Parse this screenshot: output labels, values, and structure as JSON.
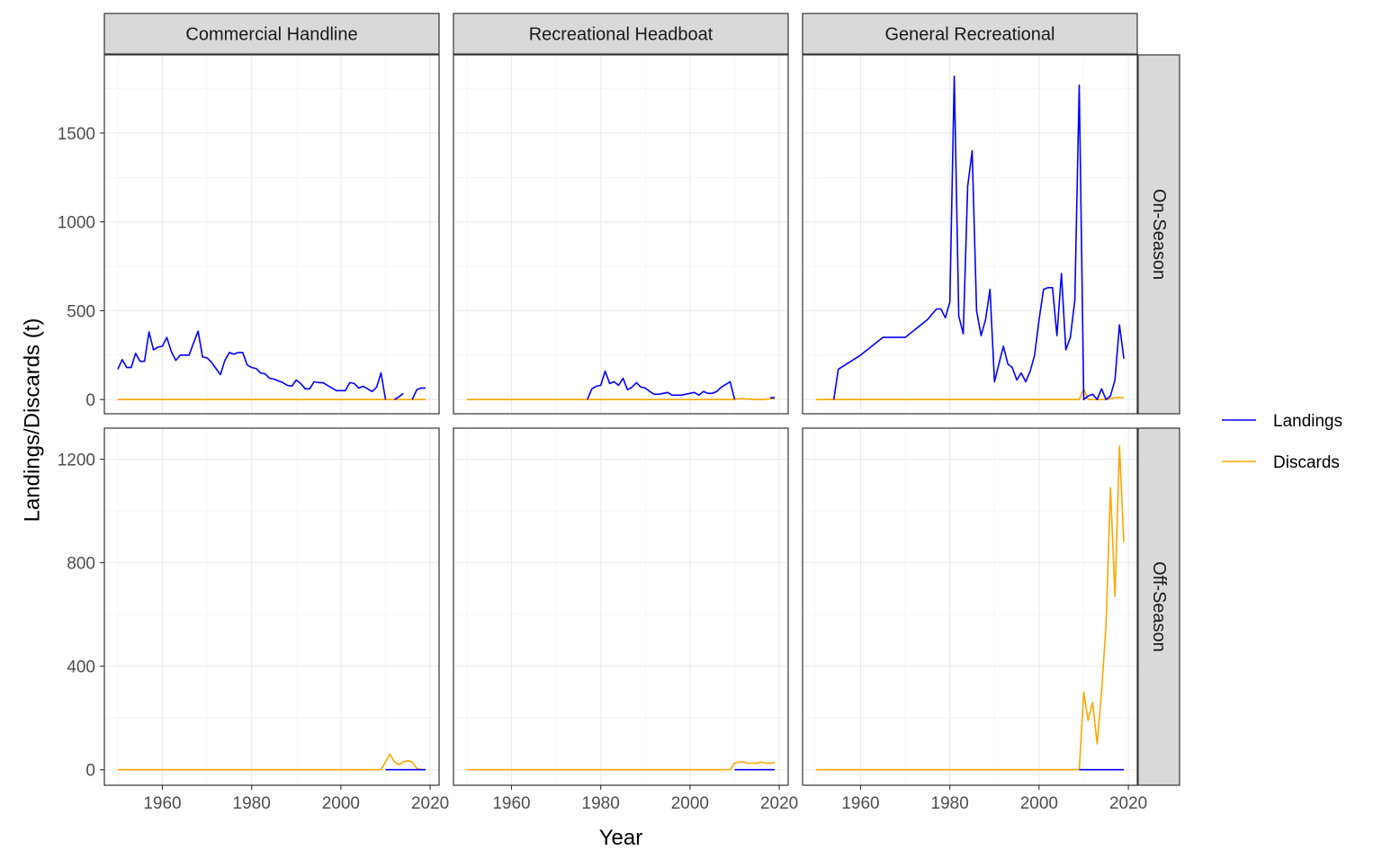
{
  "chart_data": {
    "type": "line",
    "xlabel": "Year",
    "ylabel": "Landings/Discards (t)",
    "facet_columns": [
      "Commercial Handline",
      "Recreational Headboat",
      "General Recreational"
    ],
    "facet_rows": [
      "On-Season",
      "Off-Season"
    ],
    "xlim": [
      1947,
      2022
    ],
    "x_ticks": [
      1960,
      1980,
      2000,
      2020
    ],
    "ylim_rows": {
      "On-Season": [
        -80,
        1940
      ],
      "Off-Season": [
        -60,
        1320
      ]
    },
    "y_ticks_rows": {
      "On-Season": [
        0,
        500,
        1000,
        1500
      ],
      "Off-Season": [
        0,
        400,
        800,
        1200
      ]
    },
    "legend": {
      "position": "right",
      "entries": [
        {
          "name": "Landings",
          "color": "#0000ff"
        },
        {
          "name": "Discards",
          "color": "#ffa500"
        }
      ]
    },
    "grid": true,
    "panels": [
      {
        "column": "Commercial Handline",
        "row": "On-Season",
        "series": [
          {
            "name": "Landings",
            "x": [
              1950,
              1951,
              1952,
              1953,
              1954,
              1955,
              1956,
              1957,
              1958,
              1959,
              1960,
              1961,
              1962,
              1963,
              1964,
              1965,
              1966,
              1967,
              1968,
              1969,
              1970,
              1971,
              1972,
              1973,
              1974,
              1975,
              1976,
              1977,
              1978,
              1979,
              1980,
              1981,
              1982,
              1983,
              1984,
              1985,
              1986,
              1987,
              1988,
              1989,
              1990,
              1991,
              1992,
              1993,
              1994,
              1995,
              1996,
              1997,
              1998,
              1999,
              2000,
              2001,
              2002,
              2003,
              2004,
              2005,
              2006,
              2007,
              2008,
              2009,
              2010,
              null,
              2012,
              2013,
              2014,
              null,
              2016,
              2017,
              2018,
              2019
            ],
            "y": [
              170,
              225,
              180,
              180,
              260,
              215,
              215,
              380,
              280,
              295,
              300,
              350,
              270,
              220,
              250,
              250,
              250,
              320,
              385,
              240,
              235,
              210,
              175,
              140,
              220,
              265,
              255,
              265,
              265,
              195,
              180,
              175,
              150,
              145,
              120,
              115,
              105,
              95,
              80,
              75,
              110,
              90,
              60,
              60,
              100,
              95,
              95,
              80,
              65,
              50,
              50,
              50,
              95,
              90,
              65,
              75,
              60,
              45,
              70,
              150,
              0,
              null,
              0,
              15,
              35,
              null,
              0,
              55,
              65,
              65
            ]
          },
          {
            "name": "Discards",
            "x": [
              1950,
              2019
            ],
            "y": [
              0,
              0
            ]
          }
        ]
      },
      {
        "column": "Recreational Headboat",
        "row": "On-Season",
        "series": [
          {
            "name": "Landings",
            "x": [
              1977,
              1978,
              1979,
              1980,
              1981,
              1982,
              1983,
              1984,
              1985,
              1986,
              1987,
              1988,
              1989,
              1990,
              1991,
              1992,
              1993,
              1994,
              1995,
              1996,
              1997,
              1998,
              1999,
              2000,
              2001,
              2002,
              2003,
              2004,
              2005,
              2006,
              2007,
              2008,
              2009,
              2010,
              null,
              2018,
              2019
            ],
            "y": [
              0,
              60,
              75,
              80,
              160,
              90,
              100,
              80,
              120,
              55,
              70,
              95,
              70,
              65,
              45,
              30,
              30,
              35,
              40,
              25,
              25,
              25,
              30,
              35,
              40,
              25,
              45,
              35,
              35,
              45,
              70,
              85,
              100,
              0,
              null,
              10,
              10
            ]
          },
          {
            "name": "Discards",
            "x": [
              1950,
              2010,
              2011,
              2012,
              2013,
              2014,
              2015,
              2016,
              2017,
              2018,
              2019
            ],
            "y": [
              0,
              0,
              5,
              5,
              2,
              2,
              0,
              0,
              2,
              5,
              5
            ]
          }
        ]
      },
      {
        "column": "General Recreational",
        "row": "On-Season",
        "series": [
          {
            "name": "Landings",
            "x": [
              1954,
              1955,
              1960,
              1965,
              1970,
              1975,
              1977,
              1978,
              1979,
              1980,
              1981,
              1982,
              1983,
              1984,
              1985,
              1986,
              1987,
              1988,
              1989,
              1990,
              1991,
              1992,
              1993,
              1994,
              1995,
              1996,
              1997,
              1998,
              1999,
              2000,
              2001,
              2002,
              2003,
              2004,
              2005,
              2006,
              2007,
              2008,
              2009,
              2010,
              2011,
              2012,
              2013,
              2014,
              2015,
              2016,
              2017,
              2018,
              2019
            ],
            "y": [
              0,
              170,
              250,
              350,
              350,
              450,
              510,
              510,
              460,
              550,
              1820,
              470,
              370,
              1200,
              1400,
              500,
              360,
              450,
              620,
              100,
              200,
              300,
              200,
              180,
              110,
              150,
              100,
              160,
              250,
              450,
              620,
              630,
              630,
              360,
              710,
              280,
              350,
              560,
              1770,
              0,
              20,
              30,
              0,
              60,
              0,
              20,
              110,
              420,
              230
            ]
          },
          {
            "name": "Discards",
            "x": [
              1950,
              2009,
              2010,
              2011,
              2012,
              2013,
              2014,
              2015,
              2016,
              2017,
              2018,
              2019
            ],
            "y": [
              0,
              0,
              60,
              0,
              0,
              0,
              0,
              0,
              5,
              10,
              10,
              10
            ]
          }
        ]
      },
      {
        "column": "Commercial Handline",
        "row": "Off-Season",
        "series": [
          {
            "name": "Landings",
            "x": [
              2010,
              2019
            ],
            "y": [
              0,
              0
            ]
          },
          {
            "name": "Discards",
            "x": [
              1950,
              2009,
              2010,
              2011,
              2012,
              2013,
              2014,
              2015,
              2016,
              2017,
              2018,
              2019
            ],
            "y": [
              0,
              0,
              30,
              60,
              30,
              20,
              30,
              35,
              30,
              5,
              0,
              0
            ]
          }
        ]
      },
      {
        "column": "Recreational Headboat",
        "row": "Off-Season",
        "series": [
          {
            "name": "Landings",
            "x": [
              2010,
              2019
            ],
            "y": [
              0,
              0
            ]
          },
          {
            "name": "Discards",
            "x": [
              1950,
              2009,
              2010,
              2011,
              2012,
              2013,
              2014,
              2015,
              2016,
              2017,
              2018,
              2019
            ],
            "y": [
              0,
              0,
              25,
              30,
              30,
              25,
              25,
              25,
              30,
              25,
              25,
              28
            ]
          }
        ]
      },
      {
        "column": "General Recreational",
        "row": "Off-Season",
        "series": [
          {
            "name": "Landings",
            "x": [
              2009,
              2019
            ],
            "y": [
              0,
              0
            ]
          },
          {
            "name": "Discards",
            "x": [
              1950,
              2009,
              2010,
              2011,
              2012,
              2013,
              2014,
              2015,
              2016,
              2017,
              2018,
              2019
            ],
            "y": [
              0,
              0,
              300,
              190,
              260,
              100,
              300,
              560,
              1090,
              670,
              1250,
              880
            ]
          }
        ]
      }
    ]
  }
}
